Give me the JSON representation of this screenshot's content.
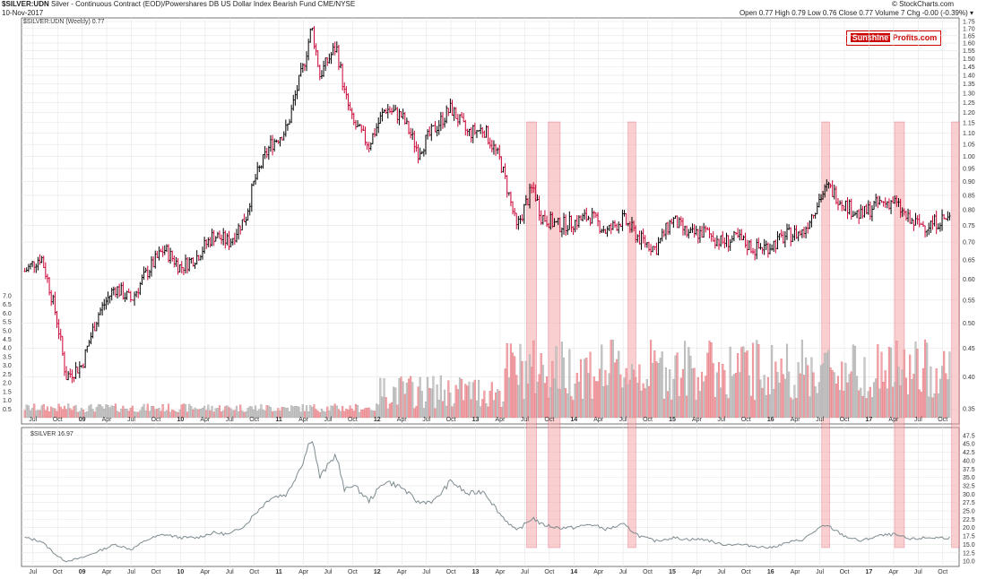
{
  "header": {
    "symbol": "$SILVER:UDN",
    "description": "Silver - Continuous Contract (EOD)/Powershares DB US Dollar Index Bearish Fund  CME/NYSE",
    "date": "10-Nov-2017",
    "ohlc": "Open 0.77  High 0.79  Low 0.76  Close 0.77  Volume 7  Chg -0.00 (-0.39%) ▾",
    "source": "© StockCharts.com",
    "legend_main": "$SILVER:UDN (Weekly) 0.77",
    "legend_lower": "$SILVER 16.97"
  },
  "brand": {
    "part1": "Sunshine",
    "part2": "Profits.com"
  },
  "colors": {
    "up": "#000000",
    "down": "#cc0033",
    "highlight": "#f4a0a0",
    "lower_line": "#7d8b90",
    "grid": "#e6e6e6"
  },
  "chart_data": [
    {
      "type": "line",
      "title": "$SILVER:UDN (Weekly) 0.77",
      "y_scale": "log",
      "ylim": [
        0.34,
        1.75
      ],
      "y_ticks": [
        "1.75",
        "1.70",
        "1.65",
        "1.60",
        "1.55",
        "1.50",
        "1.45",
        "1.40",
        "1.35",
        "1.30",
        "1.25",
        "1.20",
        "1.15",
        "1.10",
        "1.05",
        "1.00",
        "0.95",
        "0.90",
        "0.85",
        "0.80",
        "0.75",
        "0.70",
        "0.65",
        "0.60",
        "0.55",
        "0.50",
        "0.45",
        "0.40",
        "0.35"
      ],
      "volume_ticks": [
        "7.0",
        "6.5",
        "6.0",
        "5.5",
        "5.0",
        "4.5",
        "4.0",
        "3.5",
        "3.0",
        "2.5",
        "2.0",
        "1.5",
        "1.0",
        "0.5"
      ],
      "x_labels": [
        "Jul",
        "Oct",
        "09",
        "Apr",
        "Jul",
        "Oct",
        "10",
        "Apr",
        "Jul",
        "Oct",
        "11",
        "Apr",
        "Jul",
        "Oct",
        "12",
        "Apr",
        "Jul",
        "Oct",
        "13",
        "Apr",
        "Jul",
        "Oct",
        "14",
        "Apr",
        "Jul",
        "Oct",
        "15",
        "Apr",
        "Jul",
        "Oct",
        "16",
        "Apr",
        "Jul",
        "Oct",
        "17",
        "Apr",
        "Jul",
        "Oct"
      ],
      "series": [
        {
          "x": [
            "2008-06",
            "2008-08",
            "2008-10",
            "2008-11",
            "2009-01",
            "2009-03",
            "2009-05",
            "2009-07",
            "2009-09",
            "2009-11",
            "2010-01",
            "2010-03",
            "2010-05",
            "2010-07",
            "2010-09",
            "2010-10",
            "2010-12",
            "2011-02",
            "2011-04",
            "2011-05",
            "2011-06",
            "2011-08",
            "2011-09",
            "2011-10",
            "2011-12",
            "2012-02",
            "2012-04",
            "2012-06",
            "2012-08",
            "2012-10",
            "2012-12",
            "2013-02",
            "2013-04",
            "2013-06",
            "2013-08",
            "2013-09",
            "2013-11",
            "2014-01",
            "2014-03",
            "2014-05",
            "2014-07",
            "2014-09",
            "2014-11",
            "2015-01",
            "2015-03",
            "2015-05",
            "2015-07",
            "2015-09",
            "2015-11",
            "2016-01",
            "2016-03",
            "2016-05",
            "2016-07",
            "2016-08",
            "2016-10",
            "2016-12",
            "2017-02",
            "2017-04",
            "2017-06",
            "2017-08",
            "2017-10",
            "2017-11"
          ],
          "values": [
            0.62,
            0.66,
            0.5,
            0.4,
            0.42,
            0.52,
            0.58,
            0.55,
            0.62,
            0.68,
            0.63,
            0.66,
            0.72,
            0.7,
            0.78,
            0.9,
            1.05,
            1.12,
            1.45,
            1.71,
            1.4,
            1.58,
            1.3,
            1.15,
            1.05,
            1.22,
            1.18,
            1.02,
            1.12,
            1.22,
            1.1,
            1.12,
            0.98,
            0.74,
            0.88,
            0.78,
            0.75,
            0.76,
            0.78,
            0.73,
            0.77,
            0.71,
            0.68,
            0.77,
            0.72,
            0.73,
            0.7,
            0.71,
            0.68,
            0.69,
            0.72,
            0.73,
            0.84,
            0.88,
            0.82,
            0.78,
            0.82,
            0.83,
            0.76,
            0.75,
            0.77,
            0.77
          ]
        }
      ]
    },
    {
      "type": "line",
      "title": "$SILVER 16.97",
      "ylim": [
        9.5,
        48
      ],
      "y_ticks": [
        "47.5",
        "45.0",
        "42.5",
        "40.0",
        "37.5",
        "35.0",
        "32.5",
        "30.0",
        "27.5",
        "25.0",
        "22.5",
        "20.0",
        "17.5",
        "15.0",
        "12.5",
        "10.0"
      ],
      "series": [
        {
          "name": "$SILVER",
          "x": [
            "2008-06",
            "2008-08",
            "2008-10",
            "2008-11",
            "2009-01",
            "2009-03",
            "2009-05",
            "2009-07",
            "2009-09",
            "2009-11",
            "2010-01",
            "2010-03",
            "2010-05",
            "2010-07",
            "2010-09",
            "2010-10",
            "2010-12",
            "2011-02",
            "2011-04",
            "2011-05",
            "2011-06",
            "2011-08",
            "2011-09",
            "2011-10",
            "2011-12",
            "2012-02",
            "2012-04",
            "2012-06",
            "2012-08",
            "2012-10",
            "2012-12",
            "2013-02",
            "2013-04",
            "2013-06",
            "2013-08",
            "2013-09",
            "2013-11",
            "2014-01",
            "2014-03",
            "2014-05",
            "2014-07",
            "2014-09",
            "2014-11",
            "2015-01",
            "2015-03",
            "2015-05",
            "2015-07",
            "2015-09",
            "2015-11",
            "2016-01",
            "2016-03",
            "2016-05",
            "2016-07",
            "2016-08",
            "2016-10",
            "2016-12",
            "2017-02",
            "2017-04",
            "2017-06",
            "2017-08",
            "2017-10",
            "2017-11"
          ],
          "values": [
            17.0,
            16.0,
            11.5,
            10.0,
            11.0,
            13.0,
            15.0,
            13.5,
            16.5,
            18.0,
            17.0,
            17.0,
            18.5,
            18.0,
            21.0,
            24.0,
            29.0,
            30.0,
            40.0,
            47.5,
            35.0,
            42.0,
            31.0,
            33.0,
            28.0,
            34.0,
            32.0,
            27.5,
            28.0,
            34.0,
            30.0,
            31.0,
            24.0,
            19.0,
            23.0,
            21.0,
            20.0,
            20.0,
            21.0,
            19.5,
            21.0,
            17.5,
            16.0,
            17.0,
            16.5,
            16.5,
            15.0,
            15.0,
            14.5,
            14.0,
            15.5,
            16.5,
            20.0,
            20.5,
            17.5,
            16.0,
            17.5,
            18.0,
            16.5,
            17.0,
            17.0,
            16.97
          ]
        }
      ]
    }
  ]
}
